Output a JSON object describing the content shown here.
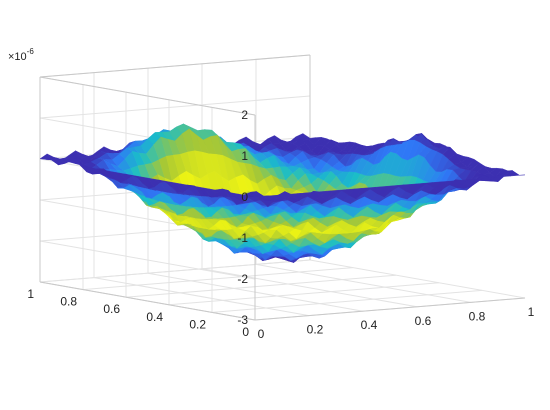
{
  "figure": {
    "exponent_prefix": "×10",
    "exponent_power": "-6"
  },
  "chart_data": {
    "type": "surface",
    "title": "",
    "xlabel": "",
    "ylabel": "",
    "zlabel": "",
    "x_range": [
      0,
      1
    ],
    "y_range": [
      0,
      1
    ],
    "z_range": [
      -3,
      2
    ],
    "z_scale": 1e-06,
    "x_ticks": [
      "0",
      "0.2",
      "0.4",
      "0.6",
      "0.8",
      "1"
    ],
    "y_ticks": [
      "0",
      "0.2",
      "0.4",
      "0.6",
      "0.8",
      "1"
    ],
    "z_ticks": [
      "-3",
      "-2",
      "-1",
      "0",
      "1",
      "2"
    ],
    "grid": true,
    "colormap": "parula",
    "colors": {
      "low": "#3e26a8",
      "mid_low": "#2f8cf6",
      "mid": "#1ac7c2",
      "mid_high": "#a6c531",
      "high": "#f9fb0e"
    }
  }
}
